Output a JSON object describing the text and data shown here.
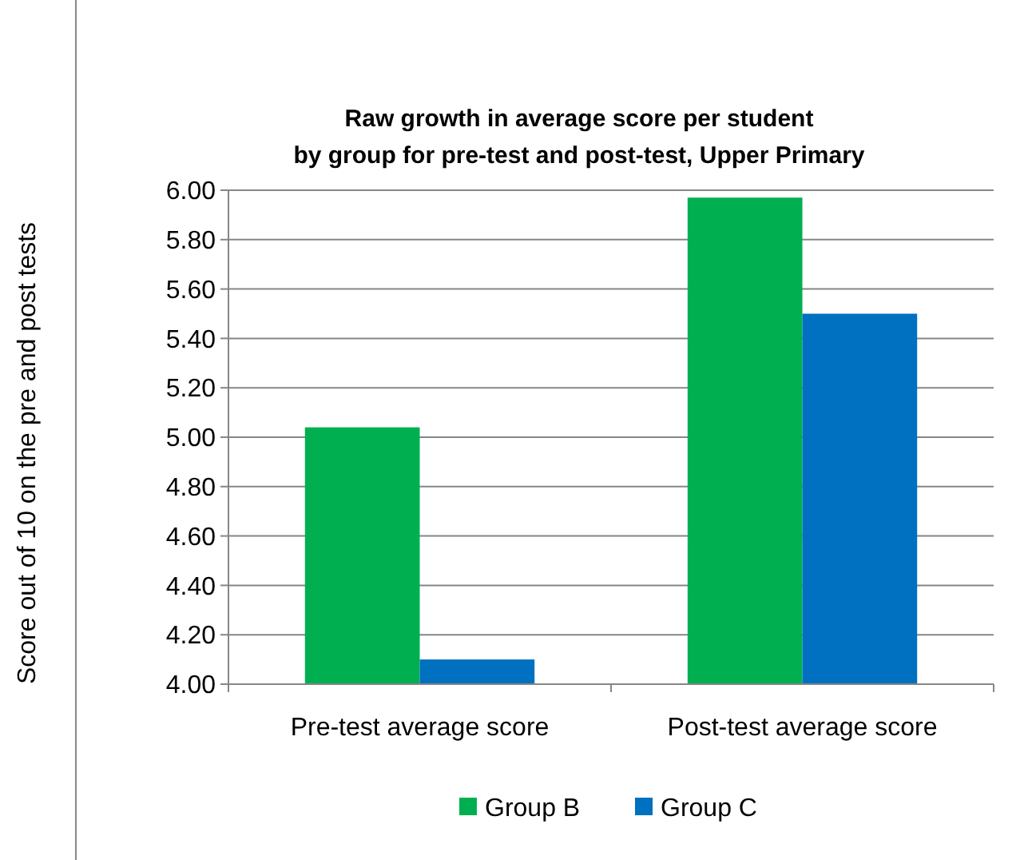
{
  "chart_data": {
    "type": "bar",
    "title": "Raw growth in average score per student\nby group for pre-test and post-test, Upper Primary",
    "ylabel": "Score out of 10 on the pre and post tests",
    "categories": [
      "Pre-test average score",
      "Post-test average score"
    ],
    "series": [
      {
        "name": "Group B",
        "color": "#00b050",
        "values": [
          5.04,
          5.97
        ]
      },
      {
        "name": "Group C",
        "color": "#0070c0",
        "values": [
          4.1,
          5.5
        ]
      }
    ],
    "ylim": [
      4,
      6
    ],
    "yticks": [
      {
        "value": 4,
        "label": "4.00"
      },
      {
        "value": 4.2,
        "label": "4.20"
      },
      {
        "value": 4.4,
        "label": "4.40"
      },
      {
        "value": 4.6,
        "label": "4.60"
      },
      {
        "value": 4.8,
        "label": "4.80"
      },
      {
        "value": 5,
        "label": "5.00"
      },
      {
        "value": 5.2,
        "label": "5.20"
      },
      {
        "value": 5.4,
        "label": "5.40"
      },
      {
        "value": 5.6,
        "label": "5.60"
      },
      {
        "value": 5.8,
        "label": "5.80"
      },
      {
        "value": 6,
        "label": "6.00"
      }
    ],
    "grid": "y",
    "legend": "bottom"
  }
}
